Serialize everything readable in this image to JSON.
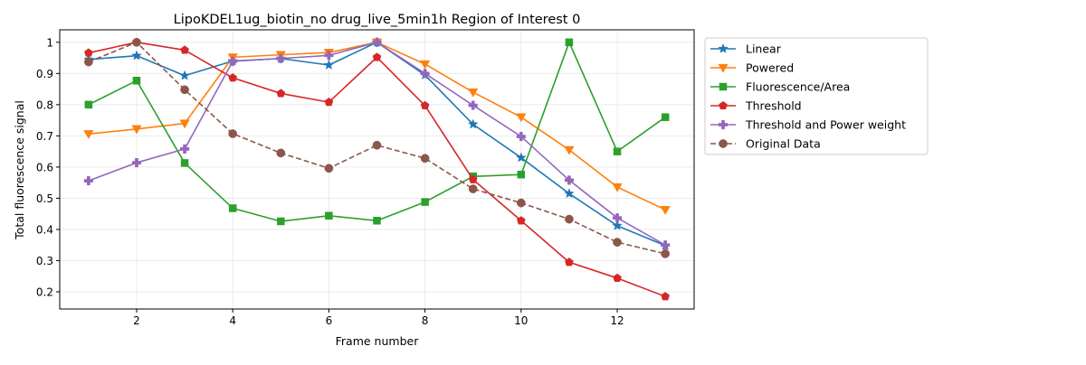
{
  "chart_data": {
    "type": "line",
    "title": "LipoKDEL1ug_biotin_no drug_live_5min1h Region of Interest 0",
    "xlabel": "Frame number",
    "ylabel": "Total fluorescence signal",
    "xlim": [
      0.4,
      13.6
    ],
    "ylim": [
      0.145,
      1.04
    ],
    "x": [
      1,
      2,
      3,
      4,
      5,
      6,
      7,
      8,
      9,
      10,
      11,
      12,
      13
    ],
    "xticks": [
      2,
      4,
      6,
      8,
      10,
      12
    ],
    "yticks": [
      0.2,
      0.3,
      0.4,
      0.5,
      0.6,
      0.7,
      0.8,
      0.9,
      1.0
    ],
    "grid": true,
    "legend_position": "outside-right-top",
    "series": [
      {
        "name": "Linear",
        "color": "#1f77b4",
        "marker": "star",
        "linestyle": "solid",
        "values": [
          0.945,
          0.957,
          0.893,
          0.94,
          0.948,
          0.927,
          1.0,
          0.895,
          0.737,
          0.63,
          0.515,
          0.412,
          0.348
        ]
      },
      {
        "name": "Powered",
        "color": "#ff7f0e",
        "marker": "triangle-down",
        "linestyle": "solid",
        "values": [
          0.706,
          0.722,
          0.74,
          0.952,
          0.96,
          0.967,
          1.0,
          0.93,
          0.84,
          0.76,
          0.655,
          0.536,
          0.463
        ]
      },
      {
        "name": "Fluorescence/Area",
        "color": "#2ca02c",
        "marker": "square",
        "linestyle": "solid",
        "values": [
          0.8,
          0.877,
          0.613,
          0.468,
          0.426,
          0.444,
          0.428,
          0.488,
          0.57,
          0.576,
          1.0,
          0.65,
          0.76
        ]
      },
      {
        "name": "Threshold",
        "color": "#d62728",
        "marker": "pentagon",
        "linestyle": "solid",
        "values": [
          0.966,
          1.0,
          0.975,
          0.886,
          0.836,
          0.808,
          0.952,
          0.797,
          0.56,
          0.428,
          0.295,
          0.244,
          0.185
        ]
      },
      {
        "name": "Threshold and Power weight",
        "color": "#9467bd",
        "marker": "plus",
        "linestyle": "solid",
        "values": [
          0.556,
          0.614,
          0.658,
          0.939,
          0.948,
          0.958,
          1.0,
          0.9,
          0.798,
          0.698,
          0.558,
          0.437,
          0.35
        ]
      },
      {
        "name": "Original Data",
        "color": "#8c564b",
        "marker": "circle",
        "linestyle": "dashed",
        "values": [
          0.937,
          1.0,
          0.848,
          0.707,
          0.645,
          0.596,
          0.67,
          0.628,
          0.53,
          0.485,
          0.433,
          0.359,
          0.322
        ]
      }
    ]
  }
}
